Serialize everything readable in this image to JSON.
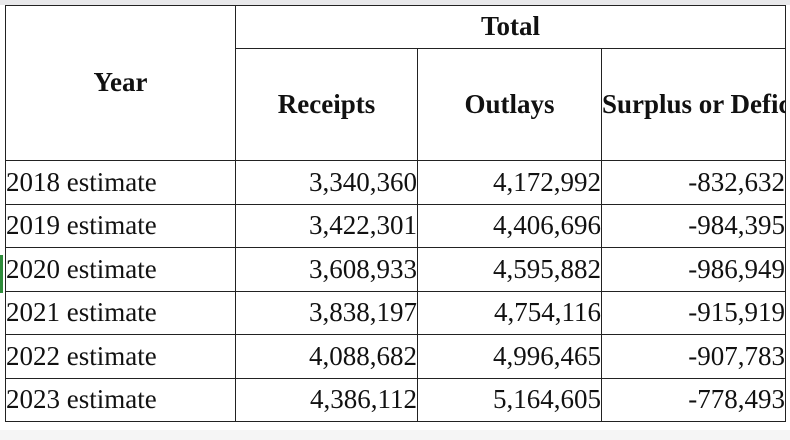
{
  "table": {
    "header": {
      "year": "Year",
      "group": "Total",
      "receipts": "Receipts",
      "outlays": "Outlays",
      "surplus": "Surplus or Deficit (-)"
    },
    "rows": [
      {
        "year": "2018 estimate",
        "receipts": "3,340,360",
        "outlays": "4,172,992",
        "surplus": "-832,632"
      },
      {
        "year": "2019 estimate",
        "receipts": "3,422,301",
        "outlays": "4,406,696",
        "surplus": "-984,395"
      },
      {
        "year": "2020 estimate",
        "receipts": "3,608,933",
        "outlays": "4,595,882",
        "surplus": "-986,949"
      },
      {
        "year": "2021 estimate",
        "receipts": "3,838,197",
        "outlays": "4,754,116",
        "surplus": "-915,919"
      },
      {
        "year": "2022 estimate",
        "receipts": "4,088,682",
        "outlays": "4,996,465",
        "surplus": "-907,783"
      },
      {
        "year": "2023 estimate",
        "receipts": "4,386,112",
        "outlays": "5,164,605",
        "surplus": "-778,493"
      }
    ]
  }
}
